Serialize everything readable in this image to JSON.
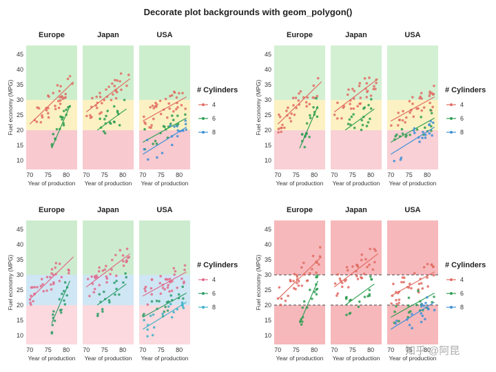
{
  "page_title": "Decorate plot backgrounds with geom_polygon()",
  "watermark": "知乎 @阿昆",
  "chart_data": [
    {
      "type": "scatter",
      "facets": [
        "Europe",
        "Japan",
        "USA"
      ],
      "xlabel": "Year of production",
      "ylabel": "Fuel economy (MPG)",
      "x_ticks": [
        70,
        75,
        80
      ],
      "y_ticks": [
        10,
        15,
        20,
        25,
        30,
        35,
        40,
        45
      ],
      "xlim": [
        69,
        83
      ],
      "ylim": [
        7,
        48
      ],
      "legend_title": "# Cylinders",
      "legend_position": "right",
      "series": [
        {
          "name": "4",
          "color": "#e06b62"
        },
        {
          "name": "6",
          "color": "#2e9e52"
        },
        {
          "name": "8",
          "color": "#3d8fd6"
        }
      ],
      "background_bands": [
        {
          "from": 7,
          "to": 20,
          "color": "#f8c9cf"
        },
        {
          "from": 20,
          "to": 30,
          "color": "#fbf1c2"
        },
        {
          "from": 30,
          "to": 48,
          "color": "#cdeecd"
        }
      ],
      "trend_lines": {
        "Europe": {
          "4": [
            [
              70,
              22
            ],
            [
              82,
              36
            ]
          ],
          "6": [
            [
              76,
              14
            ],
            [
              81,
              28
            ]
          ]
        },
        "Japan": {
          "4": [
            [
              70,
              26
            ],
            [
              82,
              37
            ]
          ],
          "6": [
            [
              73,
              20
            ],
            [
              81,
              27
            ]
          ]
        },
        "USA": {
          "4": [
            [
              70,
              23
            ],
            [
              82,
              31
            ]
          ],
          "6": [
            [
              70,
              16
            ],
            [
              82,
              24
            ]
          ],
          "8": [
            [
              70,
              12
            ],
            [
              82,
              21
            ]
          ]
        }
      }
    },
    {
      "type": "scatter",
      "facets": [
        "Europe",
        "Japan",
        "USA"
      ],
      "xlabel": "Year of production",
      "ylabel": "Fuel economy (MPG)",
      "x_ticks": [
        70,
        75,
        80
      ],
      "y_ticks": [
        10,
        15,
        20,
        25,
        30,
        35,
        40,
        45
      ],
      "xlim": [
        69,
        83
      ],
      "ylim": [
        7,
        48
      ],
      "legend_title": "# Cylinders",
      "legend_position": "right",
      "series": [
        {
          "name": "4",
          "color": "#e06b62"
        },
        {
          "name": "6",
          "color": "#2e9e52"
        },
        {
          "name": "8",
          "color": "#3d8fd6"
        }
      ],
      "background_bands": [
        {
          "from": 7,
          "to": 20,
          "color": "#f8d0d5"
        },
        {
          "from": 20,
          "to": 30,
          "color": "#fbf1c2"
        },
        {
          "from": 30,
          "to": 48,
          "color": "#d3f0d3"
        }
      ],
      "trend_lines": {
        "Europe": {
          "4": [
            [
              70,
              22
            ],
            [
              82,
              36
            ]
          ],
          "6": [
            [
              76,
              14
            ],
            [
              81,
              28
            ]
          ]
        },
        "Japan": {
          "4": [
            [
              70,
              26
            ],
            [
              82,
              37
            ]
          ],
          "6": [
            [
              73,
              20
            ],
            [
              81,
              27
            ]
          ]
        },
        "USA": {
          "4": [
            [
              70,
              23
            ],
            [
              82,
              31
            ]
          ],
          "6": [
            [
              70,
              16
            ],
            [
              82,
              24
            ]
          ],
          "8": [
            [
              70,
              12
            ],
            [
              82,
              21
            ]
          ]
        }
      }
    },
    {
      "type": "scatter",
      "facets": [
        "Europe",
        "Japan",
        "USA"
      ],
      "xlabel": "Year of production",
      "ylabel": "Fuel economy (MPG)",
      "x_ticks": [
        70,
        75,
        80
      ],
      "y_ticks": [
        10,
        15,
        20,
        25,
        30,
        35,
        40,
        45
      ],
      "xlim": [
        69,
        83
      ],
      "ylim": [
        7,
        48
      ],
      "legend_title": "# Cylinders",
      "legend_position": "right",
      "series": [
        {
          "name": "4",
          "color": "#e06b8a"
        },
        {
          "name": "6",
          "color": "#2e9e6a"
        },
        {
          "name": "8",
          "color": "#3db3c8"
        }
      ],
      "background_bands": [
        {
          "from": 7,
          "to": 20,
          "color": "#fbd9de"
        },
        {
          "from": 20,
          "to": 30,
          "color": "#cfe6f4"
        },
        {
          "from": 30,
          "to": 48,
          "color": "#cdeccf"
        }
      ],
      "trend_lines": {
        "Europe": {
          "4": [
            [
              70,
              22
            ],
            [
              82,
              36
            ]
          ],
          "6": [
            [
              76,
              14
            ],
            [
              81,
              28
            ]
          ]
        },
        "Japan": {
          "4": [
            [
              70,
              26
            ],
            [
              82,
              37
            ]
          ],
          "6": [
            [
              73,
              20
            ],
            [
              81,
              27
            ]
          ]
        },
        "USA": {
          "4": [
            [
              70,
              23
            ],
            [
              82,
              31
            ]
          ],
          "6": [
            [
              70,
              16
            ],
            [
              82,
              24
            ]
          ],
          "8": [
            [
              70,
              12
            ],
            [
              82,
              21
            ]
          ]
        }
      }
    },
    {
      "type": "scatter",
      "facets": [
        "Europe",
        "Japan",
        "USA"
      ],
      "xlabel": "Year of production",
      "ylabel": "Fuel economy (MPG)",
      "x_ticks": [
        70,
        75,
        80
      ],
      "y_ticks": [
        10,
        15,
        20,
        25,
        30,
        35,
        40,
        45
      ],
      "xlim": [
        69,
        83
      ],
      "ylim": [
        7,
        48
      ],
      "legend_title": "# Cylinders",
      "legend_position": "right",
      "series": [
        {
          "name": "4",
          "color": "#e06b62"
        },
        {
          "name": "6",
          "color": "#2e9e52"
        },
        {
          "name": "8",
          "color": "#3d8fd6"
        }
      ],
      "background_bands": [
        {
          "from": 7,
          "to": 20,
          "color": "#f7b8bb"
        },
        {
          "from": 20,
          "to": 30,
          "color": "#ffffff"
        },
        {
          "from": 30,
          "to": 48,
          "color": "#f7b8bb"
        }
      ],
      "dashed_lines": [
        20,
        30
      ],
      "trend_lines": {
        "Europe": {
          "4": [
            [
              70,
              22
            ],
            [
              82,
              36
            ]
          ],
          "6": [
            [
              76,
              14
            ],
            [
              81,
              28
            ]
          ]
        },
        "Japan": {
          "4": [
            [
              70,
              26
            ],
            [
              82,
              37
            ]
          ],
          "6": [
            [
              73,
              20
            ],
            [
              81,
              27
            ]
          ]
        },
        "USA": {
          "4": [
            [
              70,
              23
            ],
            [
              82,
              31
            ]
          ],
          "6": [
            [
              70,
              16
            ],
            [
              82,
              24
            ]
          ],
          "8": [
            [
              70,
              12
            ],
            [
              82,
              21
            ]
          ]
        }
      }
    }
  ]
}
